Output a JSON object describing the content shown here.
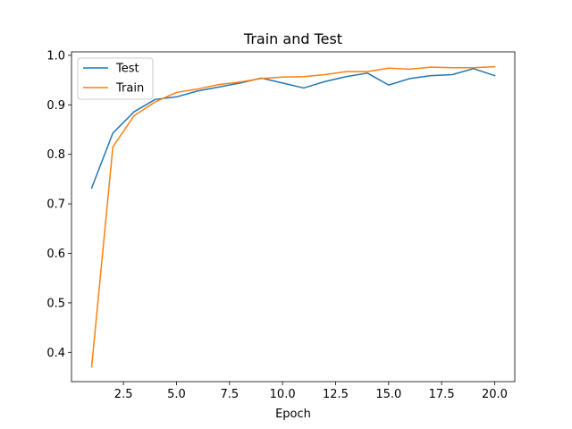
{
  "chart_data": {
    "type": "line",
    "title": "Train and Test",
    "xlabel": "Epoch",
    "ylabel": "",
    "xlim": [
      0.05,
      20.95
    ],
    "ylim": [
      0.341,
      1.007
    ],
    "x_ticks": [
      2.5,
      5.0,
      7.5,
      10.0,
      12.5,
      15.0,
      17.5,
      20.0
    ],
    "x_tick_labels": [
      "2.5",
      "5.0",
      "7.5",
      "10.0",
      "12.5",
      "15.0",
      "17.5",
      "20.0"
    ],
    "y_ticks": [
      0.4,
      0.5,
      0.6,
      0.7,
      0.8,
      0.9,
      1.0
    ],
    "y_tick_labels": [
      "0.4",
      "0.5",
      "0.6",
      "0.7",
      "0.8",
      "0.9",
      "1.0"
    ],
    "grid": false,
    "legend_position": "upper-left",
    "x": [
      1,
      2,
      3,
      4,
      5,
      6,
      7,
      8,
      9,
      10,
      11,
      12,
      13,
      14,
      15,
      16,
      17,
      18,
      19,
      20
    ],
    "series": [
      {
        "name": "Test",
        "color": "#1f77b4",
        "values": [
          0.732,
          0.843,
          0.886,
          0.911,
          0.916,
          0.928,
          0.936,
          0.944,
          0.954,
          0.944,
          0.934,
          0.947,
          0.957,
          0.964,
          0.94,
          0.953,
          0.959,
          0.961,
          0.973,
          0.959
        ]
      },
      {
        "name": "Train",
        "color": "#ff7f0e",
        "values": [
          0.371,
          0.815,
          0.878,
          0.906,
          0.925,
          0.932,
          0.941,
          0.946,
          0.953,
          0.956,
          0.957,
          0.961,
          0.967,
          0.967,
          0.974,
          0.972,
          0.976,
          0.975,
          0.975,
          0.977
        ]
      }
    ]
  }
}
